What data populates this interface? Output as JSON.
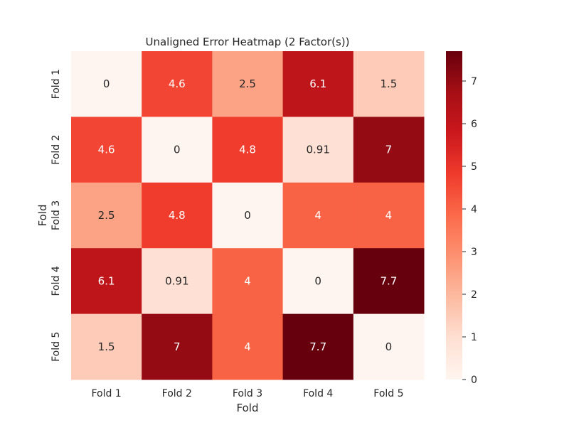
{
  "chart_data": {
    "type": "heatmap",
    "title": "Unaligned Error Heatmap (2 Factor(s))",
    "xlabel": "Fold",
    "ylabel": "Fold",
    "x_categories": [
      "Fold 1",
      "Fold 2",
      "Fold 3",
      "Fold 4",
      "Fold 5"
    ],
    "y_categories": [
      "Fold 1",
      "Fold 2",
      "Fold 3",
      "Fold 4",
      "Fold 5"
    ],
    "values": [
      [
        0,
        4.6,
        2.5,
        6.1,
        1.5
      ],
      [
        4.6,
        0,
        4.8,
        0.91,
        7
      ],
      [
        2.5,
        4.8,
        0,
        4,
        4
      ],
      [
        6.1,
        0.91,
        4,
        0,
        7.7
      ],
      [
        1.5,
        7,
        4,
        7.7,
        0
      ]
    ],
    "value_labels": [
      [
        "0",
        "4.6",
        "2.5",
        "6.1",
        "1.5"
      ],
      [
        "4.6",
        "0",
        "4.8",
        "0.91",
        "7"
      ],
      [
        "2.5",
        "4.8",
        "0",
        "4",
        "4"
      ],
      [
        "6.1",
        "0.91",
        "4",
        "0",
        "7.7"
      ],
      [
        "1.5",
        "7",
        "4",
        "7.7",
        "0"
      ]
    ],
    "colormap": "Reds",
    "color_range": [
      0,
      7.7
    ],
    "colorbar_ticks": [
      0,
      1,
      2,
      3,
      4,
      5,
      6,
      7
    ],
    "colorbar_tick_labels": [
      "0",
      "1",
      "2",
      "3",
      "4",
      "5",
      "6",
      "7"
    ],
    "colors": {
      "low": "#fff5f0",
      "high": "#67000d",
      "text_dark": "#262626",
      "text_light": "#ffffff"
    }
  }
}
